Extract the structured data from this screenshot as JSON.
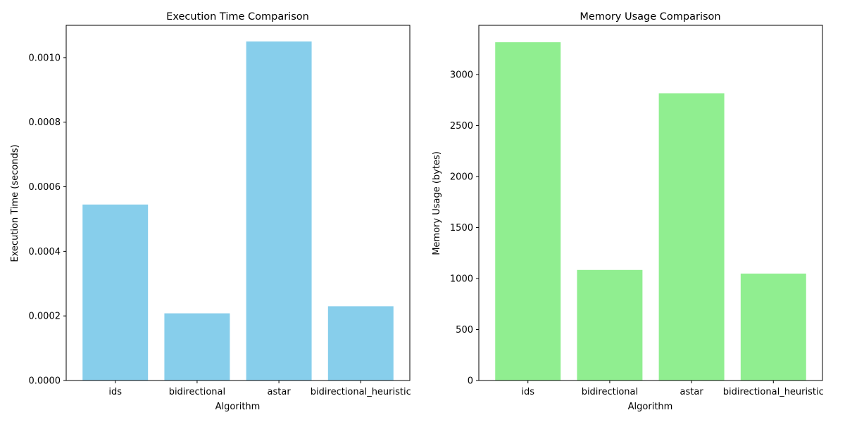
{
  "chart_data": [
    {
      "type": "bar",
      "title": "Execution Time Comparison",
      "xlabel": "Algorithm",
      "ylabel": "Execution Time (seconds)",
      "categories": [
        "ids",
        "bidirectional",
        "astar",
        "bidirectional_heuristic"
      ],
      "values": [
        0.000545,
        0.000208,
        0.00105,
        0.00023
      ],
      "ylim": [
        0,
        0.0011
      ],
      "yticks": [
        0,
        0.0002,
        0.0004,
        0.0006,
        0.0008,
        0.001
      ],
      "ytick_labels": [
        "0.0000",
        "0.0002",
        "0.0004",
        "0.0006",
        "0.0008",
        "0.0010"
      ],
      "color": "#87CEEB",
      "grid": false
    },
    {
      "type": "bar",
      "title": "Memory Usage Comparison",
      "xlabel": "Algorithm",
      "ylabel": "Memory Usage (bytes)",
      "categories": [
        "ids",
        "bidirectional",
        "astar",
        "bidirectional_heuristic"
      ],
      "values": [
        3316,
        1084,
        2816,
        1048
      ],
      "ylim": [
        0,
        3482
      ],
      "yticks": [
        0,
        500,
        1000,
        1500,
        2000,
        2500,
        3000
      ],
      "ytick_labels": [
        "0",
        "500",
        "1000",
        "1500",
        "2000",
        "2500",
        "3000"
      ],
      "color": "#90EE90",
      "grid": false
    }
  ]
}
